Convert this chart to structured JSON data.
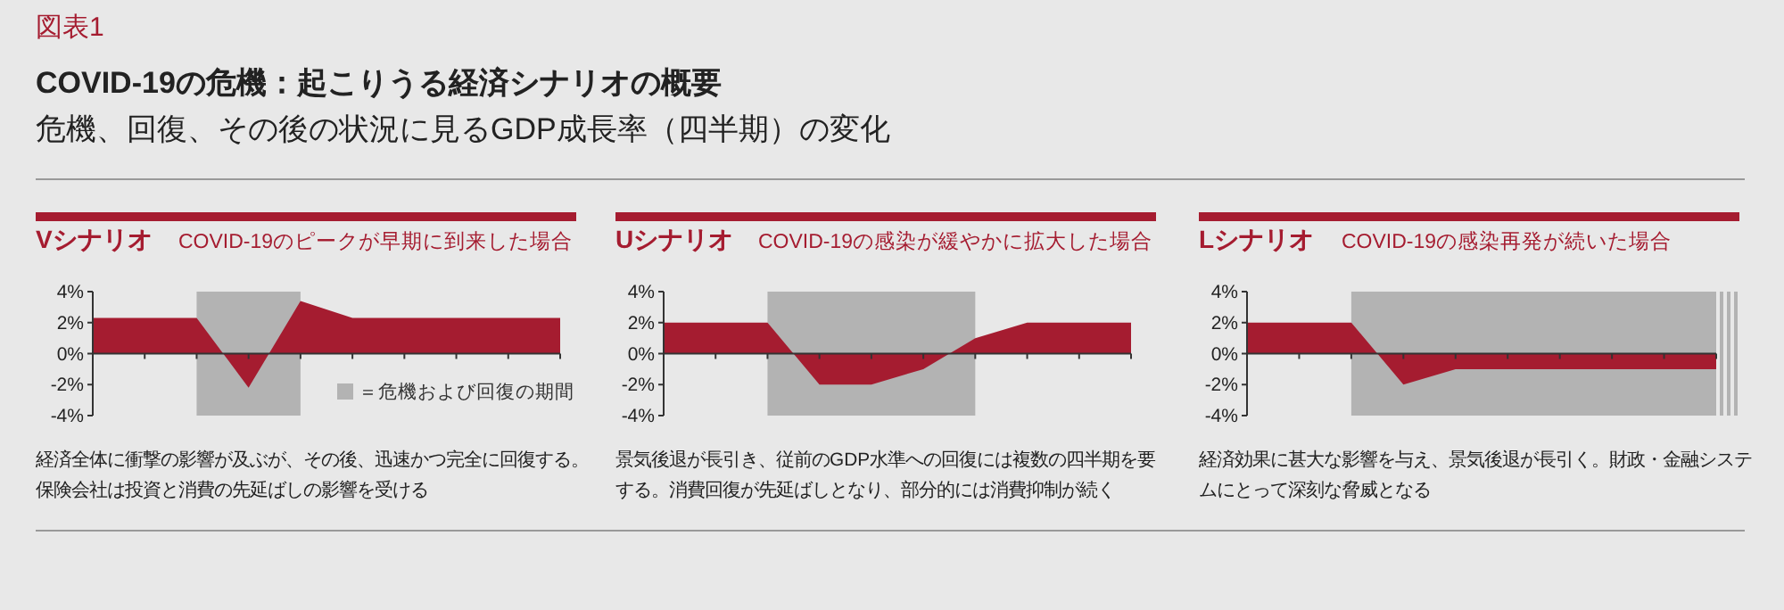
{
  "chart_data": [
    {
      "type": "other",
      "title": "COVID-19の危機：起こりうる経済シナリオの概要",
      "subtitle": "危機、回復、その後の状況に見るGDP成長率（四半期）の変化",
      "annotations": [
        "図表1"
      ]
    },
    {
      "type": "area",
      "title": "Vシナリオ",
      "subtitle": "COVID-19のピークが早期に到来した場合",
      "categories": [
        null,
        null,
        null,
        null,
        null,
        null,
        null,
        null,
        null,
        null
      ],
      "values": [
        2.3,
        2.3,
        2.3,
        -2.2,
        3.4,
        2.3,
        2.3,
        2.3,
        2.3,
        2.3
      ],
      "color": "#a51c30",
      "ylim": [
        -4,
        4
      ],
      "yticks": [
        {
          "value": 4,
          "label": "4%"
        },
        {
          "value": 2,
          "label": "2%"
        },
        {
          "value": 0,
          "label": "0%"
        },
        {
          "value": -2,
          "label": "-2%"
        },
        {
          "value": -4,
          "label": "-4%"
        }
      ],
      "tick_labels": "y",
      "annotations": [
        "＝危機および回復の期間",
        "経済全体に衝撃の影響が及ぶが、その後、迅速かつ完全に回復する。保険会社は投資と消費の先延ばしの影響を受ける"
      ]
    },
    {
      "type": "area",
      "title": "Uシナリオ",
      "subtitle": "COVID-19の感染が緩やかに拡大した場合",
      "categories": [
        null,
        null,
        null,
        null,
        null,
        null,
        null,
        null,
        null,
        null
      ],
      "values": [
        2,
        2,
        2,
        -2,
        -2,
        -1,
        1,
        2,
        2,
        2
      ],
      "color": "#a51c30",
      "ylim": [
        -4,
        4
      ],
      "yticks": [
        {
          "value": 4,
          "label": "4%"
        },
        {
          "value": 2,
          "label": "2%"
        },
        {
          "value": 0,
          "label": "0%"
        },
        {
          "value": -2,
          "label": "-2%"
        },
        {
          "value": -4,
          "label": "-4%"
        }
      ],
      "tick_labels": "y",
      "annotations": [
        "景気後退が長引き、従前のGDP水準への回復には複数の四半期を要する。消費回復が先延ばしとなり、部分的には消費抑制が続く"
      ]
    },
    {
      "type": "area",
      "title": "Lシナリオ",
      "subtitle": "COVID-19の感染再発が続いた場合",
      "categories": [
        null,
        null,
        null,
        null,
        null,
        null,
        null,
        null,
        null,
        null
      ],
      "values": [
        2,
        2,
        2,
        -2,
        -1,
        -1,
        -1,
        -1,
        -1,
        -1
      ],
      "color": "#a51c30",
      "ylim": [
        -4,
        4
      ],
      "yticks": [
        {
          "value": 4,
          "label": "4%"
        },
        {
          "value": 2,
          "label": "2%"
        },
        {
          "value": 0,
          "label": "0%"
        },
        {
          "value": -2,
          "label": "-2%"
        },
        {
          "value": -4,
          "label": "-4%"
        }
      ],
      "tick_labels": "y",
      "annotations": [
        "経済効果に甚大な影響を与え、景気後退が長引く。財政・金融システムにとって深刻な脅威となる"
      ]
    }
  ]
}
